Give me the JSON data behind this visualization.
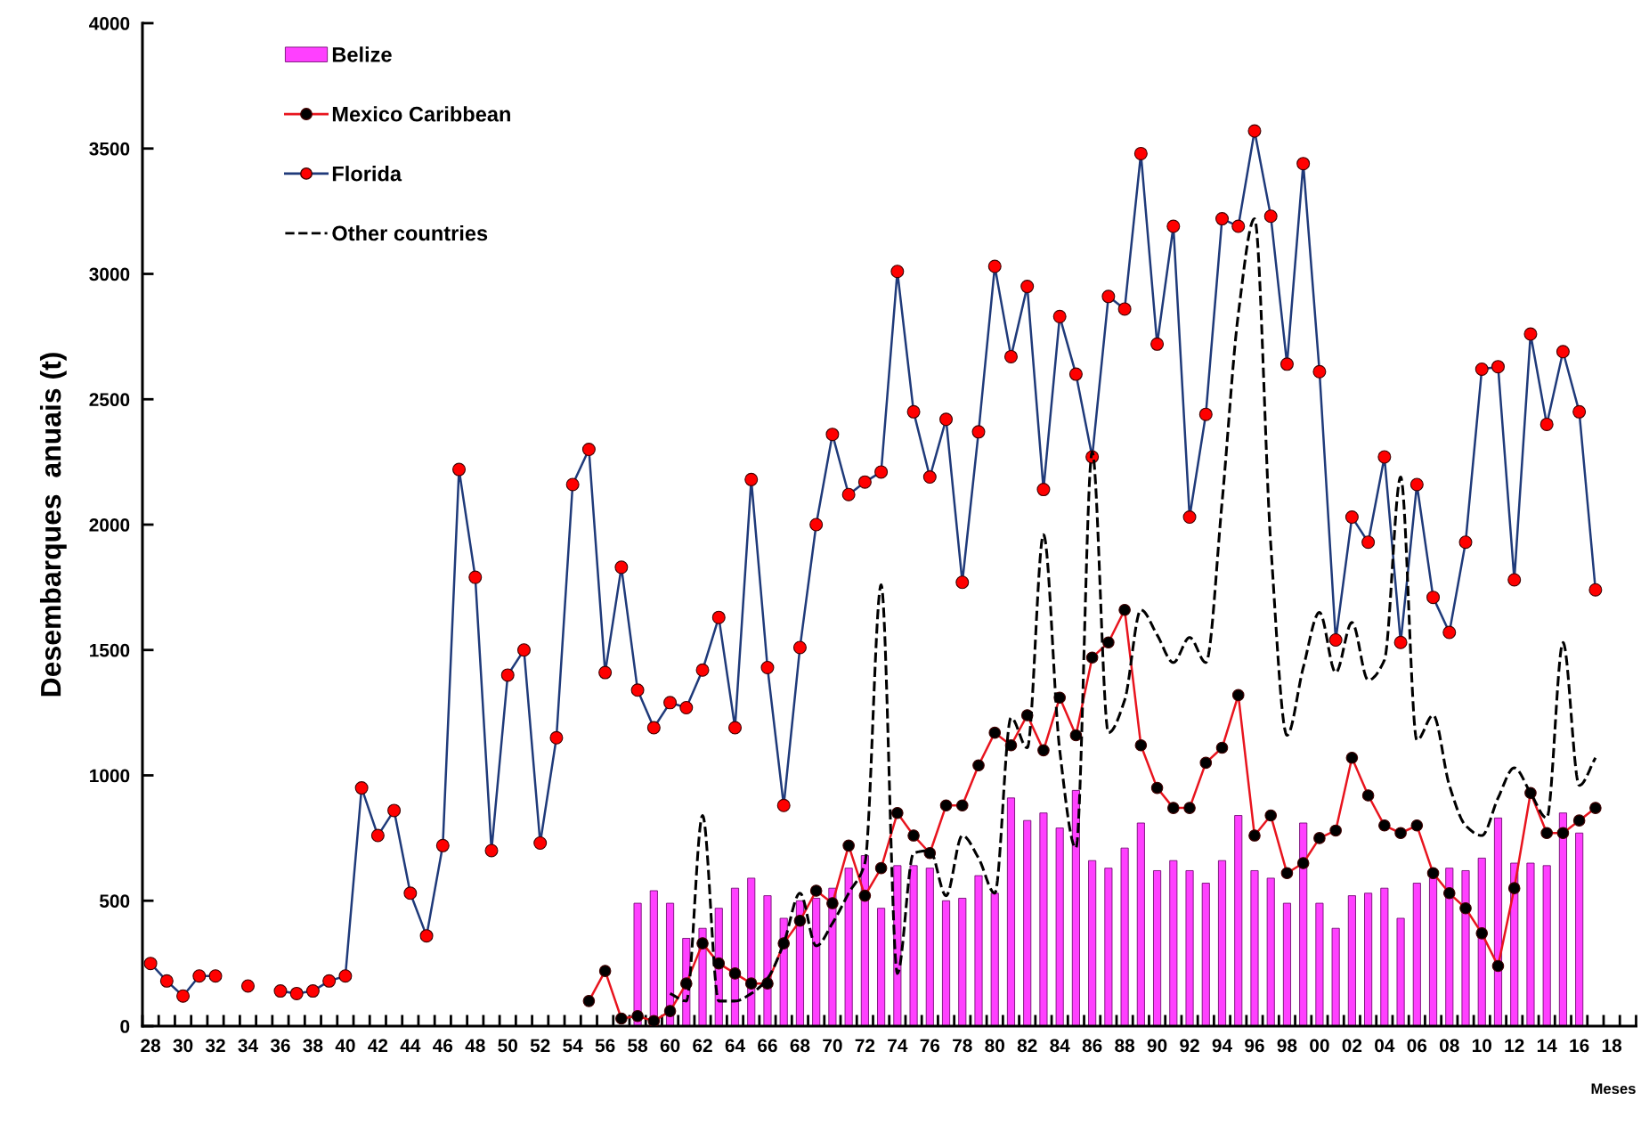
{
  "chart_data": {
    "type": "line",
    "ylabel": "Desembarques  anuais (t)",
    "xlabel": "Meses",
    "categories": [
      "28",
      null,
      "30",
      null,
      "32",
      null,
      "34",
      null,
      "36",
      null,
      "38",
      null,
      "40",
      null,
      "42",
      null,
      "44",
      null,
      "46",
      null,
      "48",
      null,
      "50",
      null,
      "52",
      null,
      "54",
      null,
      "56",
      null,
      "58",
      null,
      "60",
      null,
      "62",
      null,
      "64",
      null,
      "66",
      null,
      "68",
      null,
      "70",
      null,
      "72",
      null,
      "74",
      null,
      "76",
      null,
      "78",
      null,
      "80",
      null,
      "82",
      null,
      "84",
      null,
      "86",
      null,
      "88",
      null,
      "90",
      null,
      "92",
      null,
      "94",
      null,
      "96",
      null,
      "98",
      null,
      "00",
      null,
      "02",
      null,
      "04",
      null,
      "06",
      null,
      "08",
      null,
      "10",
      null,
      "12",
      null,
      "14",
      null,
      "16",
      null,
      "18",
      null
    ],
    "series": [
      {
        "name": "Belize",
        "type": "bar",
        "color": "#ff40ff",
        "values": [
          null,
          null,
          null,
          null,
          null,
          null,
          null,
          null,
          null,
          null,
          null,
          null,
          null,
          null,
          null,
          null,
          null,
          null,
          null,
          null,
          null,
          null,
          null,
          null,
          null,
          null,
          null,
          null,
          null,
          null,
          490,
          540,
          490,
          350,
          390,
          470,
          550,
          590,
          520,
          430,
          500,
          510,
          550,
          630,
          680,
          470,
          640,
          640,
          630,
          500,
          510,
          600,
          530,
          910,
          820,
          850,
          790,
          940,
          660,
          630,
          710,
          810,
          620,
          660,
          620,
          570,
          660,
          840,
          620,
          590,
          490,
          810,
          490,
          390,
          520,
          530,
          550,
          430,
          570,
          590,
          630,
          620,
          670,
          830,
          650,
          650,
          640,
          850,
          770,
          null,
          null,
          null
        ]
      },
      {
        "name": "Mexico Caribbean",
        "color": "#e8141e",
        "marker": "circle",
        "colors": [
          null,
          null,
          null,
          null,
          null,
          null,
          null,
          null,
          null,
          null,
          null,
          null,
          null,
          null,
          null,
          null,
          null,
          null,
          null,
          null,
          null,
          null,
          null,
          null,
          null,
          null,
          null,
          "#000000",
          "#000000",
          "#000000",
          "#000000",
          "#000000",
          "#000000",
          "#000000",
          "#000000",
          "#000000",
          "#000000",
          "#000000",
          "#000000",
          "#000000",
          "#000000",
          "#000000",
          "#000000",
          "#000000",
          "#000000",
          "#000000",
          "#000000",
          "#000000",
          "#000000",
          "#000000",
          "#000000",
          "#000000",
          "#000000",
          "#000000",
          "#000000",
          "#000000",
          "#000000",
          "#000000",
          "#000000",
          "#000000",
          "#000000",
          "#000000",
          "#000000",
          "#000000",
          "#000000",
          "#000000",
          "#000000",
          "#000000",
          "#000000",
          "#000000",
          "#000000",
          "#000000",
          "#000000",
          "#000000",
          "#000000",
          "#000000",
          "#000000",
          "#000000",
          "#000000",
          "#000000",
          "#000000",
          "#000000",
          "#000000",
          "#000000",
          "#000000",
          "#000000",
          "#000000",
          "#000000",
          "#000000",
          "#000000",
          null,
          null
        ],
        "line_style": "solid",
        "values": [
          null,
          null,
          null,
          null,
          null,
          null,
          null,
          null,
          null,
          null,
          null,
          null,
          null,
          null,
          null,
          null,
          null,
          null,
          null,
          null,
          null,
          null,
          null,
          null,
          null,
          null,
          null,
          100,
          220,
          30,
          40,
          20,
          60,
          170,
          330,
          250,
          210,
          170,
          170,
          330,
          420,
          540,
          490,
          720,
          520,
          630,
          850,
          760,
          690,
          880,
          880,
          1040,
          1170,
          1120,
          1240,
          1100,
          1310,
          1160,
          1470,
          1530,
          1660,
          1120,
          950,
          870,
          870,
          1050,
          1110,
          1320,
          760,
          840,
          610,
          650,
          750,
          780,
          1070,
          920,
          800,
          770,
          800,
          610,
          530,
          470,
          370,
          240,
          550,
          930,
          770,
          770,
          820,
          870,
          null,
          null
        ]
      },
      {
        "name": "Florida",
        "color": "#1f3a7a",
        "marker": "circle",
        "colors": [
          "#ff0000",
          "#ff0000",
          "#ff0000",
          "#ff0000",
          "#ff0000",
          null,
          "#ff0000",
          null,
          "#ff0000",
          "#ff0000",
          "#ff0000",
          "#ff0000",
          "#ff0000",
          "#ff0000",
          "#ff0000",
          "#ff0000",
          "#ff0000",
          "#ff0000",
          "#ff0000",
          "#ff0000",
          "#ff0000",
          "#ff0000",
          "#ff0000",
          "#ff0000",
          "#ff0000",
          "#ff0000",
          "#ff0000",
          "#ff0000",
          "#ff0000",
          "#ff0000",
          "#ff0000",
          "#ff0000",
          "#ff0000",
          "#ff0000",
          "#ff0000",
          "#ff0000",
          "#ff0000",
          "#ff0000",
          "#ff0000",
          "#ff0000",
          "#ff0000",
          "#ff0000",
          "#ff0000",
          "#ff0000",
          "#ff0000",
          "#ff0000",
          "#ff0000",
          "#ff0000",
          "#ff0000",
          "#ff0000",
          "#ff0000",
          "#ff0000",
          "#ff0000",
          "#ff0000",
          "#ff0000",
          "#ff0000",
          "#ff0000",
          "#ff0000",
          "#ff0000",
          "#ff0000",
          "#ff0000",
          "#ff0000",
          "#ff0000",
          "#ff0000",
          "#ff0000",
          "#ff0000",
          "#ff0000",
          "#ff0000",
          "#ff0000",
          "#ff0000",
          "#ff0000",
          "#ff0000",
          "#ff0000",
          "#ff0000",
          "#ff0000",
          "#ff0000",
          "#ff0000",
          "#ff0000",
          "#ff0000",
          "#ff0000",
          "#ff0000",
          "#ff0000",
          "#ff0000",
          "#ff0000",
          "#ff0000",
          "#ff0000",
          "#ff0000",
          "#ff0000",
          "#ff0000",
          "#ff0000",
          null,
          null
        ],
        "line_style": "solid",
        "values": [
          250,
          180,
          120,
          200,
          200,
          null,
          160,
          null,
          140,
          130,
          140,
          180,
          200,
          950,
          760,
          860,
          530,
          360,
          720,
          2220,
          1790,
          700,
          1400,
          1500,
          730,
          1150,
          2160,
          2300,
          1410,
          1830,
          1340,
          1190,
          1290,
          1270,
          1420,
          1630,
          1190,
          2180,
          1430,
          880,
          1510,
          2000,
          2360,
          2120,
          2170,
          2210,
          3010,
          2450,
          2190,
          2420,
          1770,
          2370,
          3030,
          2670,
          2950,
          2140,
          2830,
          2600,
          2270,
          2910,
          2860,
          3480,
          2720,
          3190,
          2030,
          2440,
          3220,
          3190,
          3570,
          3230,
          2640,
          3440,
          2610,
          1540,
          2030,
          1930,
          2270,
          1530,
          2160,
          1710,
          1570,
          1930,
          2620,
          2630,
          1780,
          2760,
          2400,
          2690,
          2450,
          1740,
          null,
          null
        ]
      },
      {
        "name": "Other countries",
        "color": "#000000",
        "marker": "none",
        "line_style": "dashed",
        "values": [
          null,
          null,
          null,
          null,
          null,
          null,
          null,
          null,
          null,
          null,
          null,
          null,
          null,
          null,
          null,
          null,
          null,
          null,
          null,
          null,
          null,
          null,
          null,
          null,
          null,
          null,
          null,
          null,
          null,
          null,
          null,
          null,
          130,
          100,
          840,
          100,
          100,
          130,
          190,
          330,
          530,
          320,
          410,
          530,
          650,
          1760,
          210,
          690,
          700,
          520,
          760,
          670,
          530,
          1230,
          1110,
          1960,
          1100,
          710,
          2290,
          1170,
          1300,
          1660,
          1560,
          1450,
          1550,
          1450,
          2090,
          2840,
          3220,
          1920,
          1160,
          1430,
          1650,
          1410,
          1610,
          1380,
          1460,
          2190,
          1140,
          1240,
          960,
          800,
          760,
          910,
          1030,
          930,
          830,
          1530,
          960,
          1070,
          null,
          null
        ]
      }
    ],
    "ylim": [
      0,
      4000
    ],
    "yticks": [
      0,
      500,
      1000,
      1500,
      2000,
      2500,
      3000,
      3500,
      4000
    ],
    "legend": "top left"
  }
}
